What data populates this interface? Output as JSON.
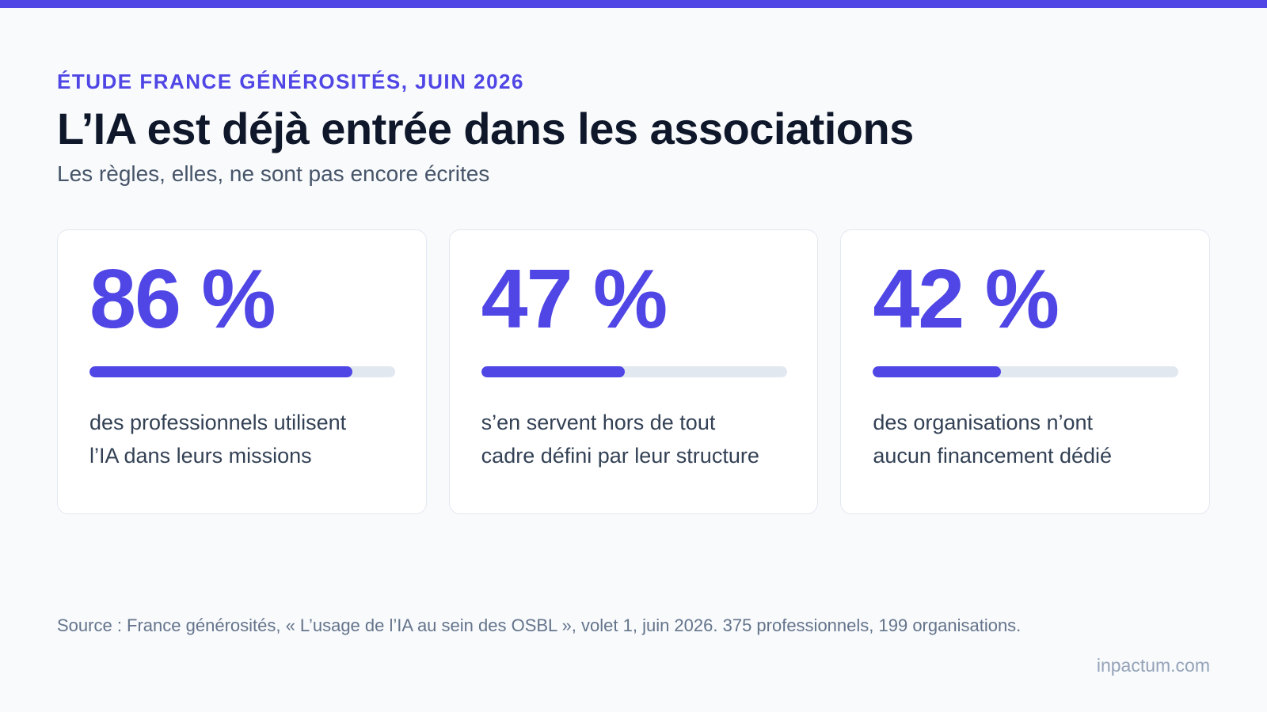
{
  "header": {
    "eyebrow": "ÉTUDE FRANCE GÉNÉROSITÉS, JUIN 2026",
    "title": "L’IA est déjà entrée dans les associations",
    "subtitle": "Les règles, elles, ne sont pas encore écrites"
  },
  "cards": [
    {
      "stat": "86 %",
      "progress": 0.86,
      "line1": "des professionnels utilisent",
      "line2": "l’IA dans leurs missions"
    },
    {
      "stat": "47 %",
      "progress": 0.47,
      "line1": "s’en servent hors de tout",
      "line2": "cadre défini par leur structure"
    },
    {
      "stat": "42 %",
      "progress": 0.42,
      "line1": "des organisations n’ont",
      "line2": "aucun financement dédié"
    }
  ],
  "footer": {
    "source": "Source : France générosités, « L’usage de l’IA au sein des OSBL », volet 1, juin 2026. 375 professionnels, 199 organisations.",
    "brand": "inpactum.com"
  },
  "colors": {
    "accent": "#4f46e5",
    "track": "#e2e8f0",
    "text": "#0f172a",
    "muted": "#64748b"
  }
}
